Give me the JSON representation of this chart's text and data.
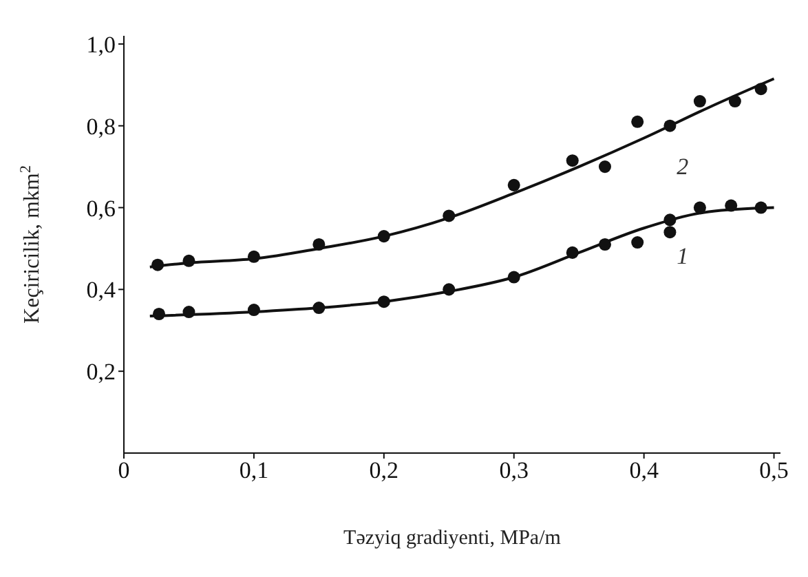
{
  "chart_data": {
    "type": "scatter",
    "xlabel": "Təzyiq gradiyenti, MPa/m",
    "ylabel": "Keçiricilik, mkm$^{2}$",
    "xlim": [
      0,
      0.505
    ],
    "ylim": [
      0,
      1.02
    ],
    "xticks": [
      {
        "value": 0,
        "label": "0"
      },
      {
        "value": 0.1,
        "label": "0,1"
      },
      {
        "value": 0.2,
        "label": "0,2"
      },
      {
        "value": 0.3,
        "label": "0,3"
      },
      {
        "value": 0.4,
        "label": "0,4"
      },
      {
        "value": 0.5,
        "label": "0,5"
      }
    ],
    "yticks": [
      {
        "value": 0.2,
        "label": "0,2"
      },
      {
        "value": 0.4,
        "label": "0,4"
      },
      {
        "value": 0.6,
        "label": "0,6"
      },
      {
        "value": 0.8,
        "label": "0,8"
      },
      {
        "value": 1.0,
        "label": "1,0"
      }
    ],
    "grid": false,
    "legend": false,
    "line_style": "solid",
    "series": [
      {
        "marker": "circle",
        "color": "#111111",
        "x": [
          0.026,
          0.05,
          0.1,
          0.15,
          0.2,
          0.25,
          0.3,
          0.345,
          0.37,
          0.395,
          0.42,
          0.443,
          0.47,
          0.49
        ],
        "values": [
          0.46,
          0.47,
          0.48,
          0.51,
          0.53,
          0.58,
          0.655,
          0.715,
          0.7,
          0.81,
          0.8,
          0.86,
          0.86,
          0.89
        ]
      },
      {
        "type": "line",
        "marker": "none",
        "name": "2",
        "color": "#111111",
        "x": [
          0.02,
          0.05,
          0.1,
          0.15,
          0.2,
          0.25,
          0.3,
          0.35,
          0.4,
          0.45,
          0.5
        ],
        "values": [
          0.455,
          0.465,
          0.475,
          0.5,
          0.53,
          0.575,
          0.635,
          0.7,
          0.77,
          0.845,
          0.915
        ]
      },
      {
        "marker": "circle",
        "color": "#111111",
        "x": [
          0.027,
          0.05,
          0.1,
          0.15,
          0.2,
          0.25,
          0.3,
          0.345,
          0.37,
          0.395,
          0.42,
          0.42,
          0.443,
          0.467,
          0.49
        ],
        "values": [
          0.34,
          0.345,
          0.35,
          0.355,
          0.37,
          0.4,
          0.43,
          0.49,
          0.51,
          0.515,
          0.57,
          0.54,
          0.6,
          0.605,
          0.6
        ]
      },
      {
        "type": "line",
        "marker": "none",
        "name": "1",
        "color": "#111111",
        "x": [
          0.02,
          0.1,
          0.15,
          0.2,
          0.25,
          0.3,
          0.35,
          0.4,
          0.45,
          0.5
        ],
        "values": [
          0.335,
          0.345,
          0.355,
          0.37,
          0.395,
          0.43,
          0.49,
          0.55,
          0.59,
          0.6
        ]
      }
    ]
  }
}
